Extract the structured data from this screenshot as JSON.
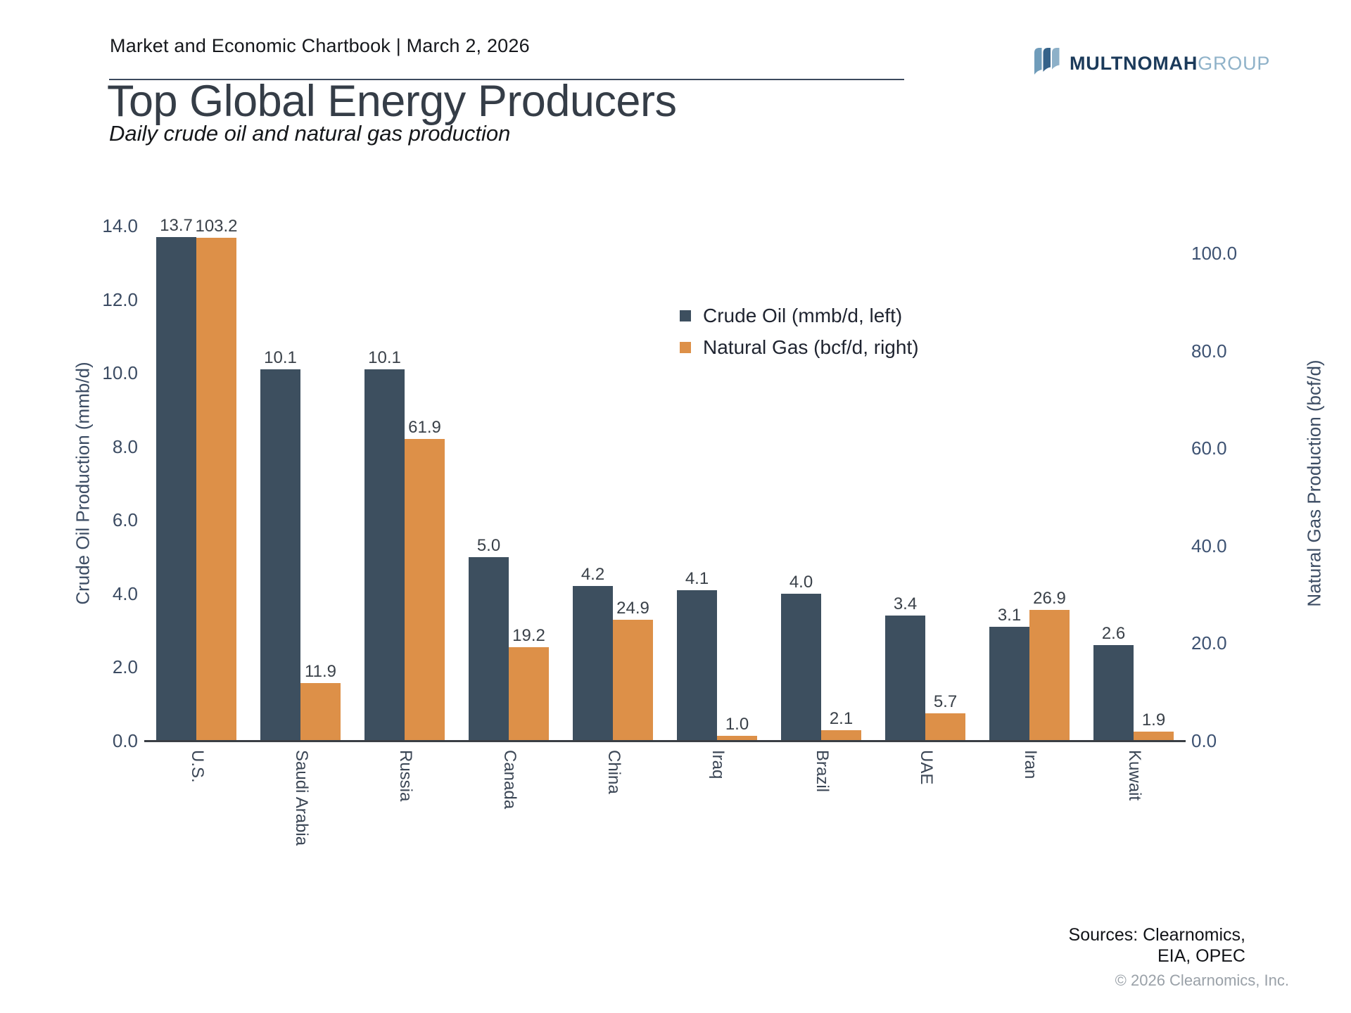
{
  "header": {
    "chartbook_label": "Market and Economic Chartbook | March 2, 2026"
  },
  "logo": {
    "brand": "MULTNOMAH",
    "brand_suffix": "GROUP",
    "icon": "three-wave-ribbons-icon",
    "navy": "#1b3a5a",
    "light_blue": "#8fb2c9"
  },
  "title": "Top Global Energy Producers",
  "subtitle": "Daily crude oil and natural gas production",
  "footer": {
    "sources_line1": "Sources: Clearnomics,",
    "sources_line2": "EIA, OPEC",
    "copyright": "© 2026 Clearnomics, Inc."
  },
  "chart_data": {
    "type": "bar",
    "title": "Top Global Energy Producers",
    "subtitle": "Daily crude oil and natural gas production",
    "categories": [
      "U.S.",
      "Saudi Arabia",
      "Russia",
      "Canada",
      "China",
      "Iraq",
      "Brazil",
      "UAE",
      "Iran",
      "Kuwait"
    ],
    "series": [
      {
        "name": "Crude Oil (mmb/d, left)",
        "axis": "left",
        "color": "#3d4f5f",
        "values": [
          13.7,
          10.1,
          10.1,
          5.0,
          4.2,
          4.1,
          4.0,
          3.4,
          3.1,
          2.6
        ]
      },
      {
        "name": "Natural Gas (bcf/d, right)",
        "axis": "right",
        "color": "#dd9048",
        "values": [
          103.2,
          11.9,
          61.9,
          19.2,
          24.9,
          1.0,
          2.1,
          5.7,
          26.9,
          1.9
        ]
      }
    ],
    "left_axis": {
      "label": "Crude Oil Production (mmb/d)",
      "min": 0,
      "max": 14,
      "ticks": [
        "0.0",
        "2.0",
        "4.0",
        "6.0",
        "8.0",
        "10.0",
        "12.0",
        "14.0"
      ]
    },
    "right_axis": {
      "label": "Natural Gas Production (bcf/d)",
      "min": 0,
      "max": 105.7,
      "ticks": [
        "0.0",
        "20.0",
        "40.0",
        "60.0",
        "80.0",
        "100.0"
      ]
    },
    "value_labels": true,
    "grid": false,
    "legend_position": "inside-upper-right"
  }
}
